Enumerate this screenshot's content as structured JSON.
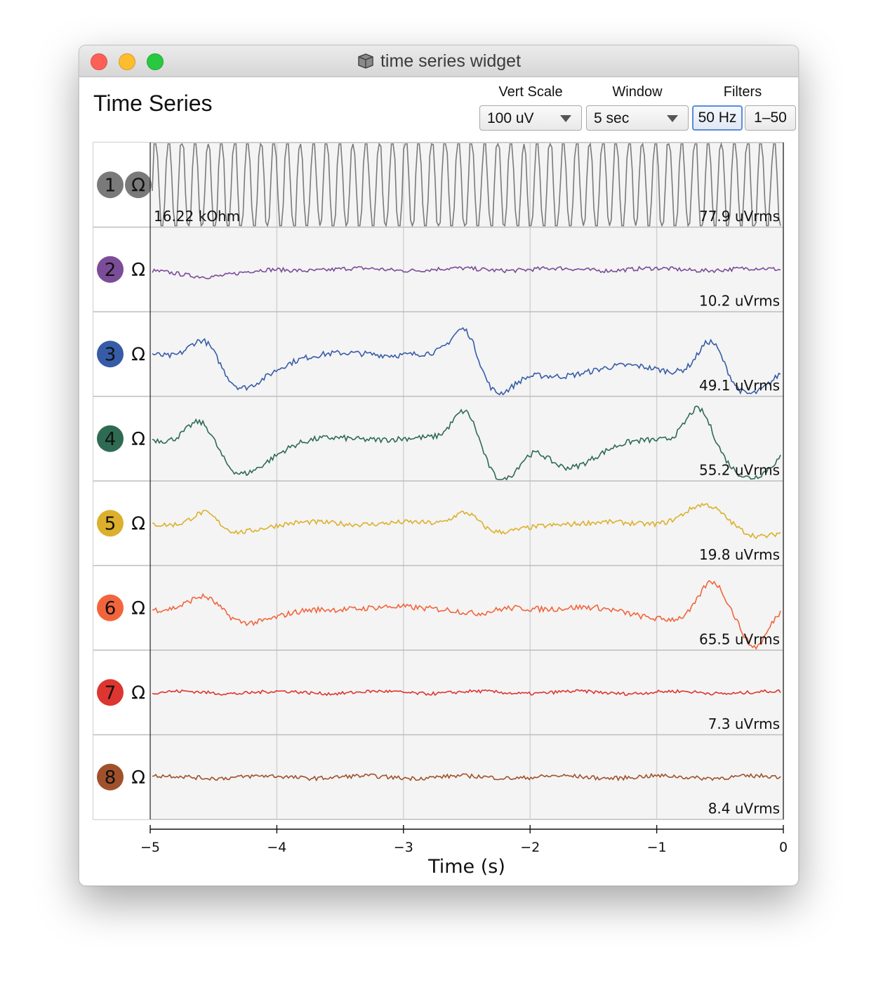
{
  "window": {
    "title": "time series widget",
    "traffic_lights": {
      "close": "#fe5f57",
      "minimize": "#febc2e",
      "zoom": "#28c840"
    }
  },
  "header": {
    "title": "Time Series",
    "vert_scale": {
      "label": "Vert Scale",
      "value": "100 uV"
    },
    "window_ctl": {
      "label": "Window",
      "value": "5 sec"
    },
    "filters": {
      "label": "Filters",
      "buttons": [
        {
          "label": "50 Hz",
          "active": true
        },
        {
          "label": "1–50",
          "active": false
        }
      ]
    }
  },
  "channels": [
    {
      "number": "1",
      "impedance_icon": "Ω",
      "color": "#7a7a7a",
      "left_readout": "16.22 kOhm",
      "rms": "77.9 uVrms",
      "railed": true
    },
    {
      "number": "2",
      "impedance_icon": "Ω",
      "color": "#7b4c98",
      "left_readout": "",
      "rms": "10.2 uVrms"
    },
    {
      "number": "3",
      "impedance_icon": "Ω",
      "color": "#365ca8",
      "left_readout": "",
      "rms": "49.1 uVrms"
    },
    {
      "number": "4",
      "impedance_icon": "Ω",
      "color": "#2e6b52",
      "left_readout": "",
      "rms": "55.2 uVrms"
    },
    {
      "number": "5",
      "impedance_icon": "Ω",
      "color": "#dcb02c",
      "left_readout": "",
      "rms": "19.8 uVrms"
    },
    {
      "number": "6",
      "impedance_icon": "Ω",
      "color": "#f2653c",
      "left_readout": "",
      "rms": "65.5 uVrms"
    },
    {
      "number": "7",
      "impedance_icon": "Ω",
      "color": "#dd3530",
      "left_readout": "",
      "rms": "7.3 uVrms"
    },
    {
      "number": "8",
      "impedance_icon": "Ω",
      "color": "#a0512c",
      "left_readout": "",
      "rms": "8.4 uVrms"
    }
  ],
  "x_axis": {
    "label": "Time (s)",
    "ticks": [
      "−5",
      "−4",
      "−3",
      "−2",
      "−1",
      "0"
    ],
    "range": [
      -5,
      0
    ]
  }
}
